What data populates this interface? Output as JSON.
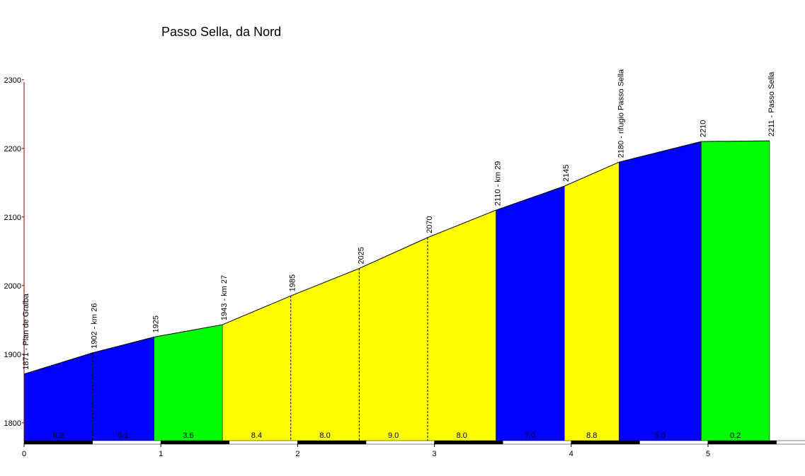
{
  "chart_data": {
    "type": "area",
    "title": "Passo Sella, da Nord",
    "xlabel": "",
    "ylabel": "",
    "xlim": [
      0,
      5.72
    ],
    "ylim": [
      1774,
      2300
    ],
    "y_ticks": [
      1800,
      1900,
      2000,
      2100,
      2200,
      2300
    ],
    "x_ticks": [
      0,
      1,
      2,
      3,
      4,
      5
    ],
    "points": [
      {
        "x": 0.0,
        "elev": 1871,
        "label": "1871 - Plan de Gralba"
      },
      {
        "x": 0.5,
        "elev": 1902,
        "label": "1902 - km 26"
      },
      {
        "x": 0.95,
        "elev": 1925,
        "label": "1925"
      },
      {
        "x": 1.45,
        "elev": 1943,
        "label": "1943 - km 27"
      },
      {
        "x": 1.95,
        "elev": 1985,
        "label": "1985"
      },
      {
        "x": 2.45,
        "elev": 2025,
        "label": "2025"
      },
      {
        "x": 2.95,
        "elev": 2070,
        "label": "2070"
      },
      {
        "x": 3.45,
        "elev": 2110,
        "label": "2110 - km 29"
      },
      {
        "x": 3.95,
        "elev": 2145,
        "label": "2145"
      },
      {
        "x": 4.35,
        "elev": 2180,
        "label": "2180 - rifugio Passo Sella"
      },
      {
        "x": 4.95,
        "elev": 2210,
        "label": "2210"
      },
      {
        "x": 5.45,
        "elev": 2211,
        "label": "2211 - Passo Sella"
      }
    ],
    "segments": [
      {
        "gradient": "6.2",
        "color": "#0000ff"
      },
      {
        "gradient": "5.1",
        "color": "#0000ff"
      },
      {
        "gradient": "3.6",
        "color": "#00ff00"
      },
      {
        "gradient": "8.4",
        "color": "#ffff00"
      },
      {
        "gradient": "8.0",
        "color": "#ffff00"
      },
      {
        "gradient": "9.0",
        "color": "#ffff00"
      },
      {
        "gradient": "8.0",
        "color": "#ffff00"
      },
      {
        "gradient": "7.0",
        "color": "#0000ff"
      },
      {
        "gradient": "8.8",
        "color": "#ffff00"
      },
      {
        "gradient": "5.0",
        "color": "#0000ff"
      },
      {
        "gradient": "0.2",
        "color": "#00ff00"
      }
    ],
    "axis_color": "#800000"
  }
}
